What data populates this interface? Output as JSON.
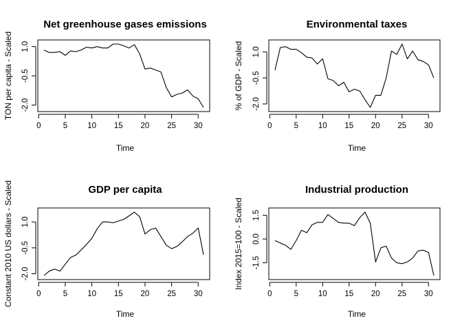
{
  "chart_data": [
    {
      "type": "line",
      "title": "Net greenhouse gases emissions",
      "xlabel": "Time",
      "ylabel": "TON per capita - Scaled",
      "x": [
        1,
        2,
        3,
        4,
        5,
        6,
        7,
        8,
        9,
        10,
        11,
        12,
        13,
        14,
        15,
        16,
        17,
        18,
        19,
        20,
        21,
        22,
        23,
        24,
        25,
        26,
        27,
        28,
        29,
        30,
        31
      ],
      "values": [
        0.82,
        0.7,
        0.7,
        0.74,
        0.55,
        0.78,
        0.74,
        0.83,
        0.97,
        0.93,
        1.0,
        0.93,
        0.93,
        1.13,
        1.13,
        1.04,
        0.93,
        1.1,
        0.62,
        -0.15,
        -0.1,
        -0.2,
        -0.3,
        -1.1,
        -1.58,
        -1.45,
        -1.38,
        -1.22,
        -1.53,
        -1.68,
        -2.12
      ],
      "xticks": [
        0,
        5,
        10,
        15,
        20,
        25,
        30
      ],
      "yticks": [
        -2.0,
        -0.5,
        1.0
      ],
      "ytick_labels": [
        "-2.0",
        "-0.5",
        "1.0"
      ],
      "xlim": [
        1,
        31
      ],
      "ylim": [
        -2.12,
        1.13
      ]
    },
    {
      "type": "line",
      "title": "Environmental taxes",
      "xlabel": "Time",
      "ylabel": "% of GDP - Scaled",
      "x": [
        1,
        2,
        3,
        4,
        5,
        6,
        7,
        8,
        9,
        10,
        11,
        12,
        13,
        14,
        15,
        16,
        17,
        18,
        19,
        20,
        21,
        22,
        23,
        24,
        25,
        26,
        27,
        28,
        29,
        30,
        31
      ],
      "values": [
        -0.05,
        1.25,
        1.3,
        1.15,
        1.15,
        0.95,
        0.7,
        0.65,
        0.3,
        0.6,
        -0.55,
        -0.65,
        -0.95,
        -0.75,
        -1.3,
        -1.15,
        -1.25,
        -1.75,
        -2.2,
        -1.5,
        -1.5,
        -0.5,
        1.05,
        0.85,
        1.45,
        0.6,
        1.05,
        0.55,
        0.45,
        0.25,
        -0.5
      ],
      "xticks": [
        0,
        5,
        10,
        15,
        20,
        25,
        30
      ],
      "yticks": [
        -2.0,
        -0.5,
        1.0
      ],
      "ytick_labels": [
        "-2.0",
        "-0.5",
        "1.0"
      ],
      "xlim": [
        1,
        31
      ],
      "ylim": [
        -2.2,
        1.45
      ]
    },
    {
      "type": "line",
      "title": "GDP per capita",
      "xlabel": "Time",
      "ylabel": "Constant 2010 US dollars - Scaled",
      "x": [
        1,
        2,
        3,
        4,
        5,
        6,
        7,
        8,
        9,
        10,
        11,
        12,
        13,
        14,
        15,
        16,
        17,
        18,
        19,
        20,
        21,
        22,
        23,
        24,
        25,
        26,
        27,
        28,
        29,
        30,
        31
      ],
      "values": [
        -2.1,
        -1.85,
        -1.73,
        -1.85,
        -1.45,
        -1.05,
        -0.92,
        -0.62,
        -0.3,
        0.05,
        0.6,
        1.0,
        1.0,
        0.95,
        1.05,
        1.15,
        1.35,
        1.57,
        1.3,
        0.3,
        0.55,
        0.65,
        0.15,
        -0.35,
        -0.55,
        -0.42,
        -0.15,
        0.15,
        0.35,
        0.65,
        -0.9
      ],
      "xticks": [
        0,
        5,
        10,
        15,
        20,
        25,
        30
      ],
      "yticks": [
        -2.0,
        -0.5,
        1.0
      ],
      "ytick_labels": [
        "-2.0",
        "-0.5",
        "1.0"
      ],
      "xlim": [
        1,
        31
      ],
      "ylim": [
        -2.1,
        1.57
      ]
    },
    {
      "type": "line",
      "title": "Industrial production",
      "xlabel": "Time",
      "ylabel": "Index 2015=100 - Scaled",
      "x": [
        1,
        2,
        3,
        4,
        5,
        6,
        7,
        8,
        9,
        10,
        11,
        12,
        13,
        14,
        15,
        16,
        17,
        18,
        19,
        20,
        21,
        22,
        23,
        24,
        25,
        26,
        27,
        28,
        29,
        30,
        31
      ],
      "values": [
        -0.1,
        -0.25,
        -0.4,
        -0.65,
        -0.1,
        0.55,
        0.4,
        0.9,
        1.05,
        1.05,
        1.55,
        1.3,
        1.05,
        1.0,
        1.0,
        0.85,
        1.35,
        1.7,
        1.0,
        -1.45,
        -0.55,
        -0.45,
        -1.2,
        -1.5,
        -1.55,
        -1.45,
        -1.2,
        -0.75,
        -0.7,
        -0.85,
        -2.3
      ],
      "xticks": [
        0,
        5,
        10,
        15,
        20,
        25,
        30
      ],
      "yticks": [
        -1.5,
        0.0,
        1.5
      ],
      "ytick_labels": [
        "-1.5",
        "0.0",
        "1.5"
      ],
      "xlim": [
        1,
        31
      ],
      "ylim": [
        -2.3,
        1.7
      ]
    }
  ]
}
